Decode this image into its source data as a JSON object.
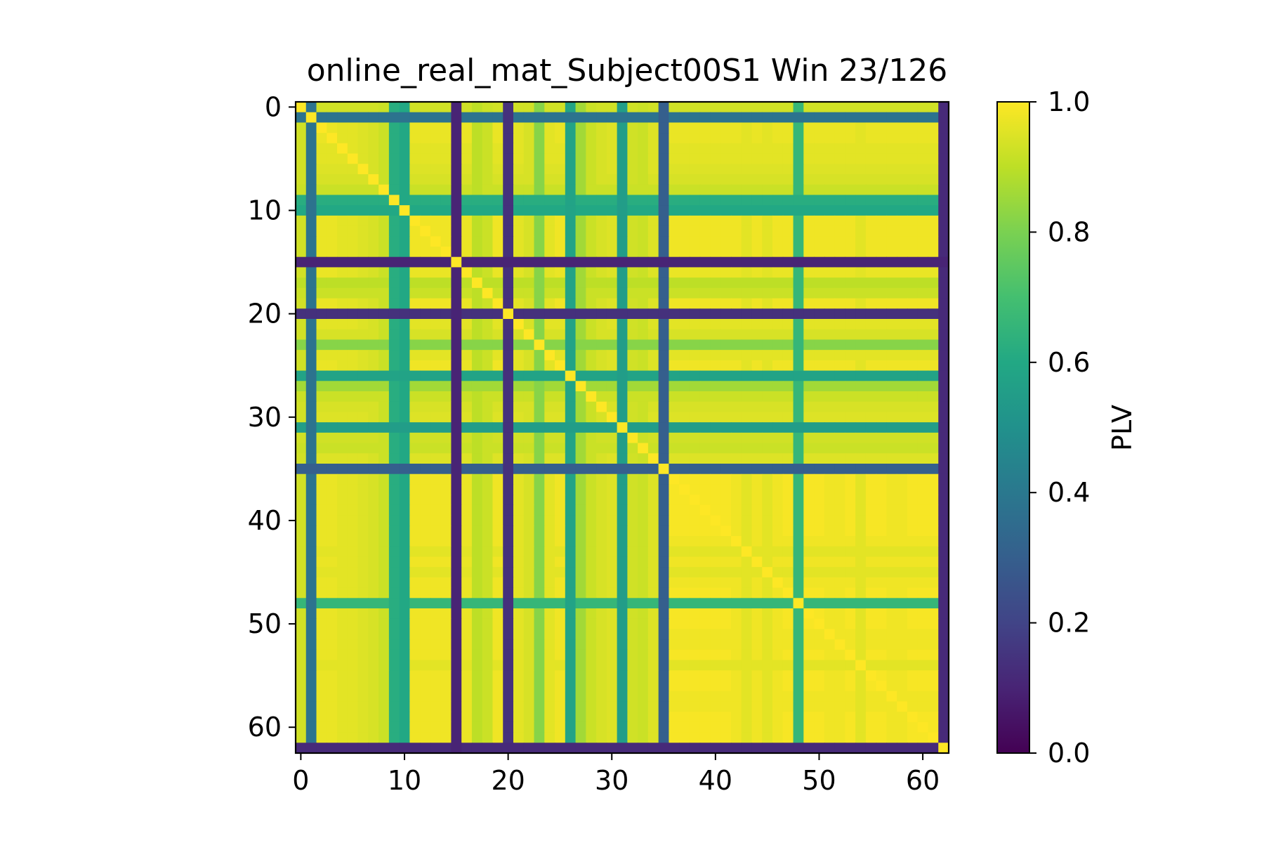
{
  "chart_data": {
    "type": "heatmap",
    "title": "online_real_mat_Subject00S1 Win 23/126",
    "xlabel": "",
    "ylabel": "",
    "rows": 63,
    "cols": 63,
    "xlim": [
      -0.5,
      62.5
    ],
    "ylim": [
      62.5,
      -0.5
    ],
    "x_ticks": [
      0,
      10,
      20,
      30,
      40,
      50,
      60
    ],
    "y_ticks": [
      0,
      10,
      20,
      30,
      40,
      50,
      60
    ],
    "x_tick_labels": [
      "0",
      "10",
      "20",
      "30",
      "40",
      "50",
      "60"
    ],
    "y_tick_labels": [
      "0",
      "10",
      "20",
      "30",
      "40",
      "50",
      "60"
    ],
    "colormap": "viridis",
    "colorbar": {
      "label": "PLV",
      "range": [
        0.0,
        1.0
      ],
      "ticks": [
        0.0,
        0.2,
        0.4,
        0.6,
        0.8,
        1.0
      ],
      "tick_labels": [
        "0.0",
        "0.2",
        "0.4",
        "0.6",
        "0.8",
        "1.0"
      ]
    },
    "channel_profile": [
      0.93,
      0.38,
      0.97,
      0.97,
      0.96,
      0.96,
      0.95,
      0.94,
      0.92,
      0.62,
      0.6,
      0.98,
      0.98,
      0.98,
      0.98,
      0.1,
      0.97,
      0.9,
      0.92,
      0.98,
      0.14,
      0.96,
      0.94,
      0.82,
      0.96,
      0.98,
      0.58,
      0.86,
      0.92,
      0.94,
      0.95,
      0.55,
      0.93,
      0.92,
      0.95,
      0.3,
      0.99,
      0.99,
      0.99,
      0.99,
      0.99,
      0.99,
      0.98,
      0.96,
      0.98,
      0.96,
      0.98,
      0.99,
      0.66,
      0.99,
      0.99,
      0.98,
      0.98,
      0.99,
      0.96,
      0.99,
      0.99,
      0.98,
      0.98,
      0.99,
      0.99,
      0.99,
      0.12
    ],
    "diagonal_value": 1.0
  }
}
